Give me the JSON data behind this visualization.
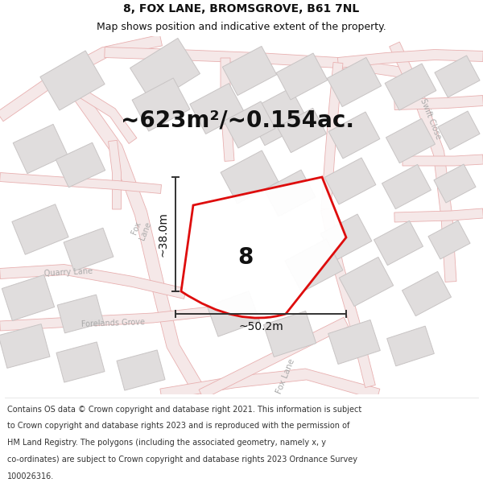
{
  "title": "8, FOX LANE, BROMSGROVE, B61 7NL",
  "subtitle": "Map shows position and indicative extent of the property.",
  "area_text": "~623m²/~0.154ac.",
  "dim_h": "~38.0m",
  "dim_w": "~50.2m",
  "house_number": "8",
  "footer_lines": [
    "Contains OS data © Crown copyright and database right 2021. This information is subject",
    "to Crown copyright and database rights 2023 and is reproduced with the permission of",
    "HM Land Registry. The polygons (including the associated geometry, namely x, y",
    "co-ordinates) are subject to Crown copyright and database rights 2023 Ordnance Survey",
    "100026316."
  ],
  "bg_color": "#f8f6f6",
  "plot_outline_color": "#dd0000",
  "building_color": "#e0dddd",
  "building_outline": "#c8c4c4",
  "road_line_color": "#e8b0b0",
  "road_fill_color": "#f5e8e8",
  "dim_line_color": "#333333",
  "text_color": "#111111",
  "road_label_color": "#aaaaaa",
  "title_fontsize": 10,
  "subtitle_fontsize": 9,
  "area_fontsize": 20,
  "dim_fontsize": 10,
  "footer_fontsize": 7.0
}
